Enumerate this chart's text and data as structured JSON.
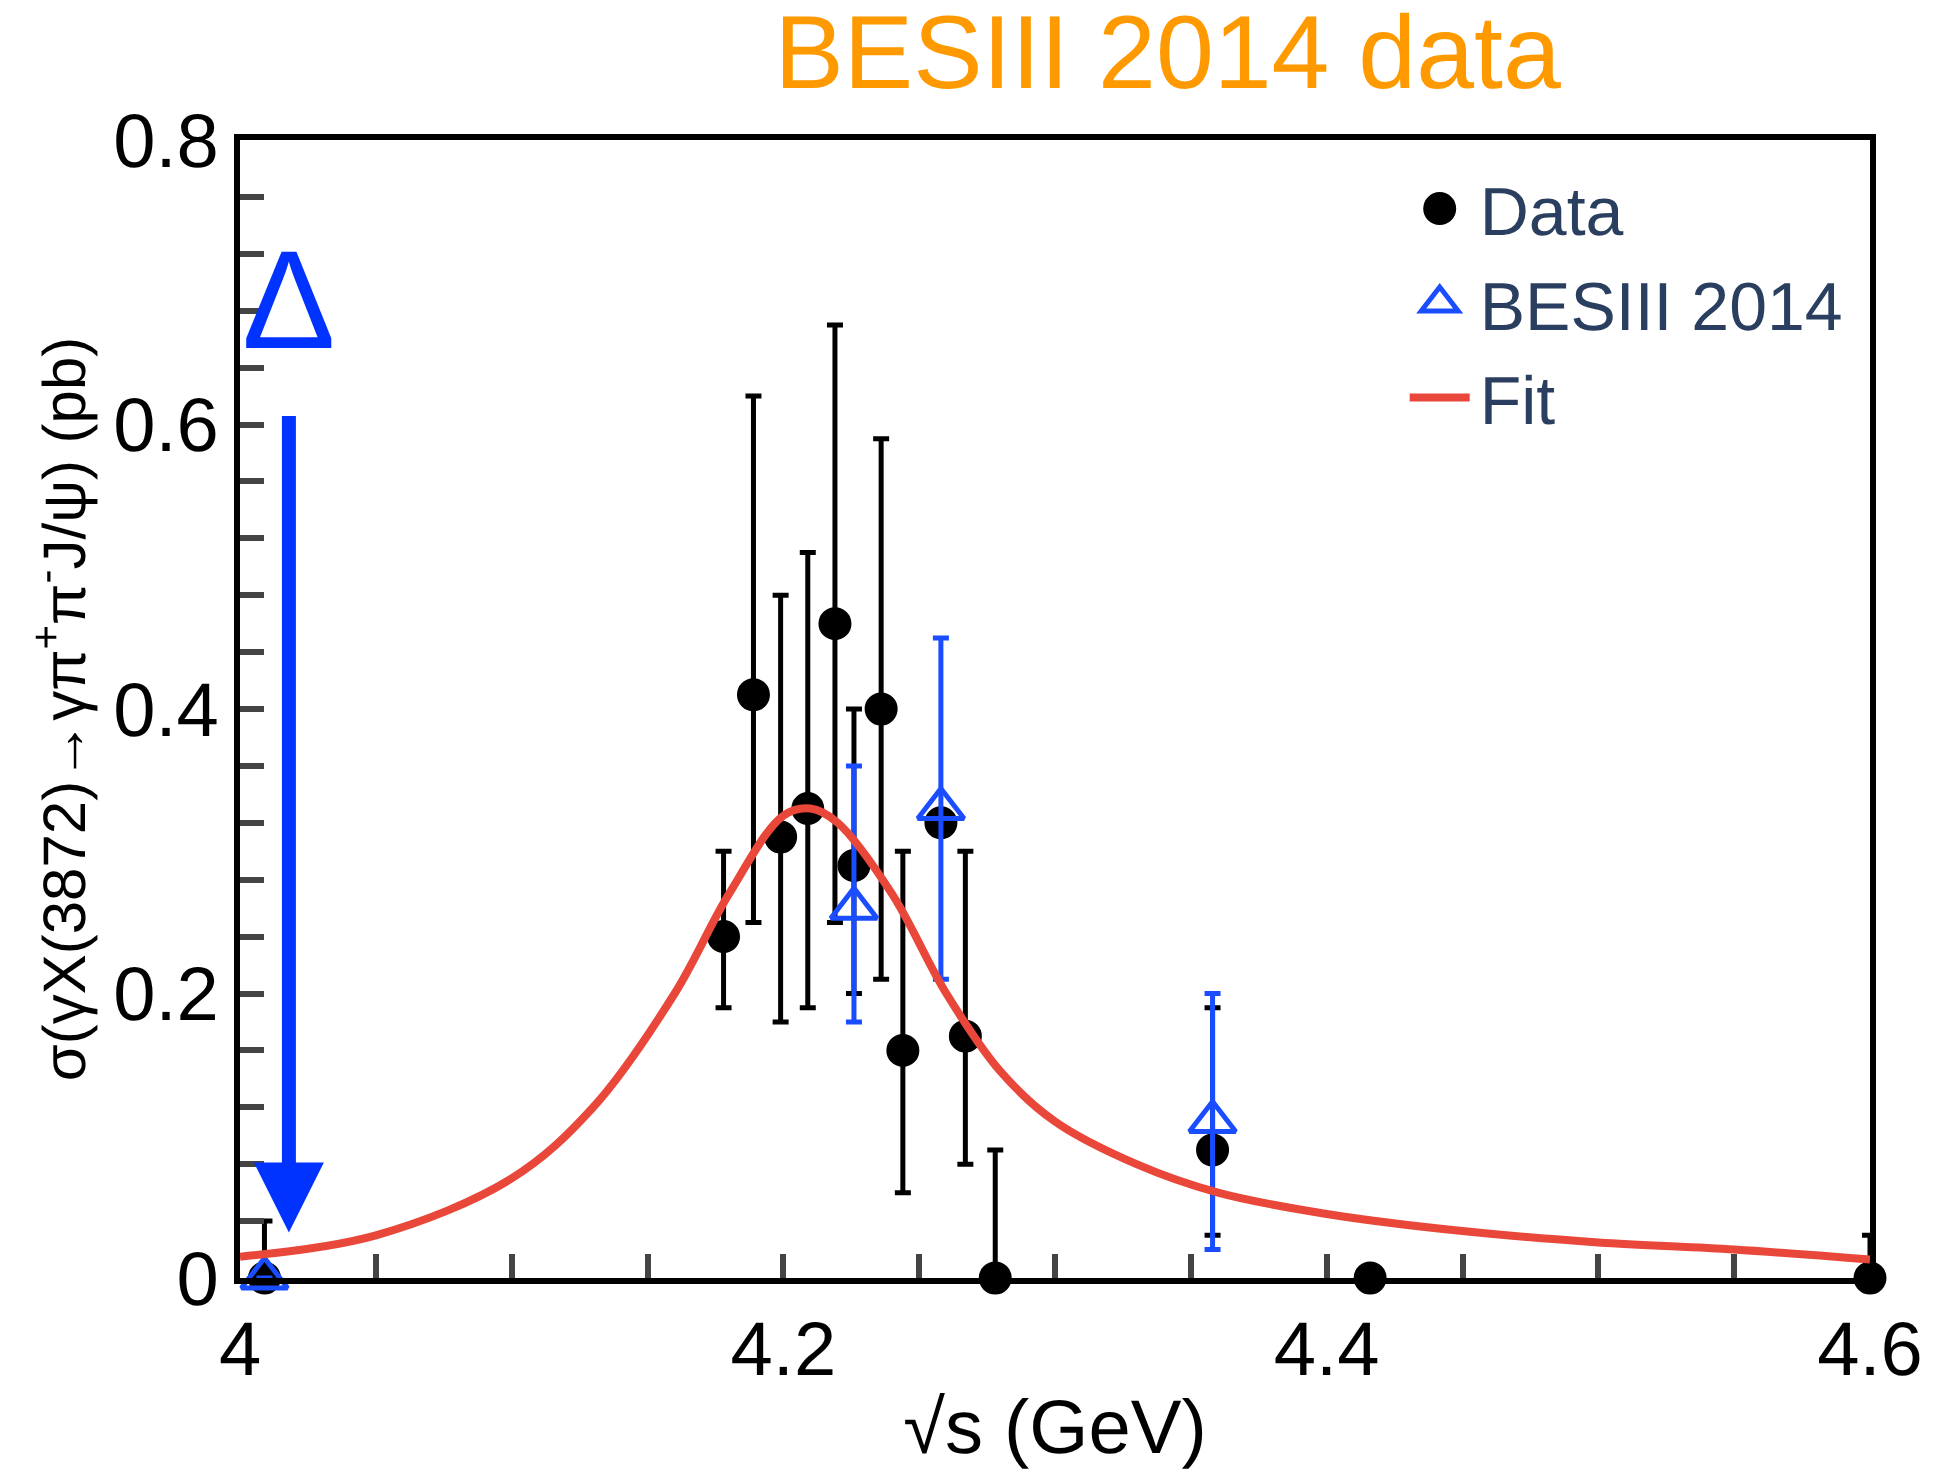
{
  "chart_data": {
    "type": "scatter",
    "title": "BESIII 2014 data",
    "xlabel": "√s (GeV)",
    "ylabel": "σ(γX(3872)→γπ$^{+}$π$^{-}$J/ψ) (pb)",
    "xlim": [
      4.0,
      4.6
    ],
    "ylim": [
      0,
      0.8
    ],
    "xticks": [
      4,
      {
        "value": 4.05,
        "label": null
      },
      {
        "value": 4.1,
        "label": null
      },
      {
        "value": 4.15,
        "label": null
      },
      4.2,
      {
        "value": 4.25,
        "label": null
      },
      {
        "value": 4.3,
        "label": null
      },
      {
        "value": 4.35,
        "label": null
      },
      4.4,
      {
        "value": 4.45,
        "label": null
      },
      {
        "value": 4.5,
        "label": null
      },
      {
        "value": 4.55,
        "label": null
      },
      4.6
    ],
    "yticks": [
      0,
      {
        "value": 0.04,
        "label": null
      },
      {
        "value": 0.08,
        "label": null
      },
      {
        "value": 0.12,
        "label": null
      },
      {
        "value": 0.16,
        "label": null
      },
      0.2,
      {
        "value": 0.24,
        "label": null
      },
      {
        "value": 0.28,
        "label": null
      },
      {
        "value": 0.32,
        "label": null
      },
      {
        "value": 0.36,
        "label": null
      },
      0.4,
      {
        "value": 0.44,
        "label": null
      },
      {
        "value": 0.48,
        "label": null
      },
      {
        "value": 0.52,
        "label": null
      },
      {
        "value": 0.56,
        "label": null
      },
      0.6,
      {
        "value": 0.64,
        "label": null
      },
      {
        "value": 0.68,
        "label": null
      },
      {
        "value": 0.72,
        "label": null
      },
      {
        "value": 0.76,
        "label": null
      },
      0.8
    ],
    "legend": "top right",
    "series": [
      {
        "name": "Data",
        "marker": "circle",
        "color": "#000000",
        "x": [
          4.009,
          4.178,
          4.189,
          4.199,
          4.209,
          4.219,
          4.226,
          4.236,
          4.244,
          4.258,
          4.267,
          4.278,
          4.358,
          4.416,
          4.6
        ],
        "values": [
          0,
          0.24,
          0.41,
          0.31,
          0.33,
          0.46,
          0.29,
          0.4,
          0.16,
          0.32,
          0.17,
          0,
          0.09,
          0,
          0
        ],
        "errors": [
          [
            0,
            0.04
          ],
          [
            0.19,
            0.3
          ],
          [
            0.25,
            0.62
          ],
          [
            0.18,
            0.48
          ],
          [
            0.19,
            0.51
          ],
          [
            0.25,
            0.67
          ],
          [
            0.2,
            0.4
          ],
          [
            0.21,
            0.59
          ],
          [
            0.06,
            0.3
          ],
          null,
          [
            0.08,
            0.3
          ],
          [
            0,
            0.09
          ],
          [
            0.03,
            0.19
          ],
          null,
          [
            0,
            0.03
          ]
        ]
      },
      {
        "name": "BESIII 2014",
        "marker": "triangle",
        "color": "#1a4dff",
        "x": [
          4.009,
          4.226,
          4.258,
          4.358
        ],
        "values": [
          0,
          0.26,
          0.33,
          0.11
        ],
        "errors": [
          null,
          [
            0.18,
            0.36
          ],
          [
            0.21,
            0.45
          ],
          [
            0.02,
            0.2
          ]
        ]
      },
      {
        "name": "Fit",
        "type": "line",
        "marker": "none",
        "color": "#e8473a",
        "x": [
          4.0,
          4.05,
          4.1,
          4.13,
          4.16,
          4.18,
          4.2,
          4.21,
          4.22,
          4.24,
          4.26,
          4.28,
          4.3,
          4.33,
          4.36,
          4.4,
          4.45,
          4.5,
          4.55,
          4.6
        ],
        "values": [
          0.015,
          0.03,
          0.07,
          0.12,
          0.2,
          0.27,
          0.325,
          0.33,
          0.32,
          0.27,
          0.2,
          0.145,
          0.11,
          0.08,
          0.06,
          0.045,
          0.033,
          0.025,
          0.02,
          0.013
        ]
      }
    ],
    "annotations": [
      "Δ"
    ]
  }
}
